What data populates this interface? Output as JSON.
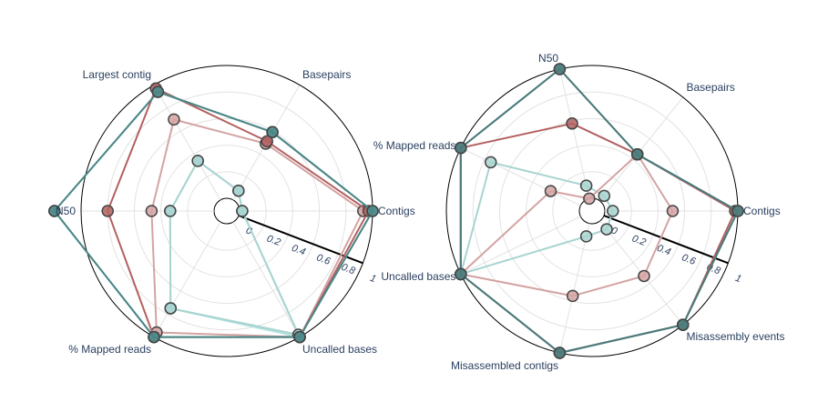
{
  "chart_data": [
    {
      "type": "radar",
      "axes": [
        "Contigs",
        "Basepairs",
        "Largest contig",
        "N50",
        "% Mapped reads",
        "Uncalled bases"
      ],
      "radial_ticks": [
        "0",
        "0.2",
        "0.4",
        "0.6",
        "0.8",
        "1"
      ],
      "rlim": [
        0,
        1
      ],
      "series": [
        {
          "color": "#b2dfdf",
          "values": [
            0.02,
            0.08,
            0.34,
            0.33,
            0.75,
            1.0
          ]
        },
        {
          "color": "#a8d4d0",
          "values": [
            0.02,
            0.08,
            0.34,
            0.33,
            0.75,
            0.98
          ]
        },
        {
          "color": "#d4a3a3",
          "values": [
            0.93,
            0.49,
            0.7,
            0.47,
            0.96,
            1.0
          ]
        },
        {
          "color": "#b36060",
          "values": [
            0.97,
            0.51,
            0.97,
            0.8,
            1.0,
            1.0
          ]
        },
        {
          "color": "#5fb8b8",
          "values": [
            1.0,
            0.59,
            0.94,
            1.2,
            1.0,
            1.0
          ]
        },
        {
          "color": "#4d8585",
          "values": [
            1.0,
            0.59,
            0.94,
            1.2,
            1.0,
            1.0
          ]
        }
      ]
    },
    {
      "type": "radar",
      "axes": [
        "Contigs",
        "Basepairs",
        "N50",
        "% Mapped reads",
        "Uncalled bases",
        "Misassembled contigs",
        "Misassembly events"
      ],
      "radial_ticks": [
        "0",
        "0.2",
        "0.4",
        "0.6",
        "0.8",
        "1"
      ],
      "rlim": [
        0,
        1
      ],
      "series": [
        {
          "color": "#a8d4d0",
          "values": [
            0.06,
            0.05,
            0.1,
            0.75,
            1.0,
            0.1,
            0.08
          ]
        },
        {
          "color": "#d4a3a3",
          "values": [
            0.51,
            0.45,
            0.0,
            0.25,
            1.0,
            0.56,
            0.53
          ]
        },
        {
          "color": "#b36060",
          "values": [
            0.98,
            0.45,
            0.58,
            1.0,
            1.0,
            1.0,
            1.0
          ]
        },
        {
          "color": "#5fb8b8",
          "values": [
            1.0,
            0.45,
            1.0,
            1.0,
            1.0,
            1.0,
            1.0
          ]
        },
        {
          "color": "#4d7878",
          "values": [
            1.0,
            0.45,
            1.0,
            1.0,
            1.0,
            1.0,
            1.0
          ]
        }
      ]
    }
  ]
}
